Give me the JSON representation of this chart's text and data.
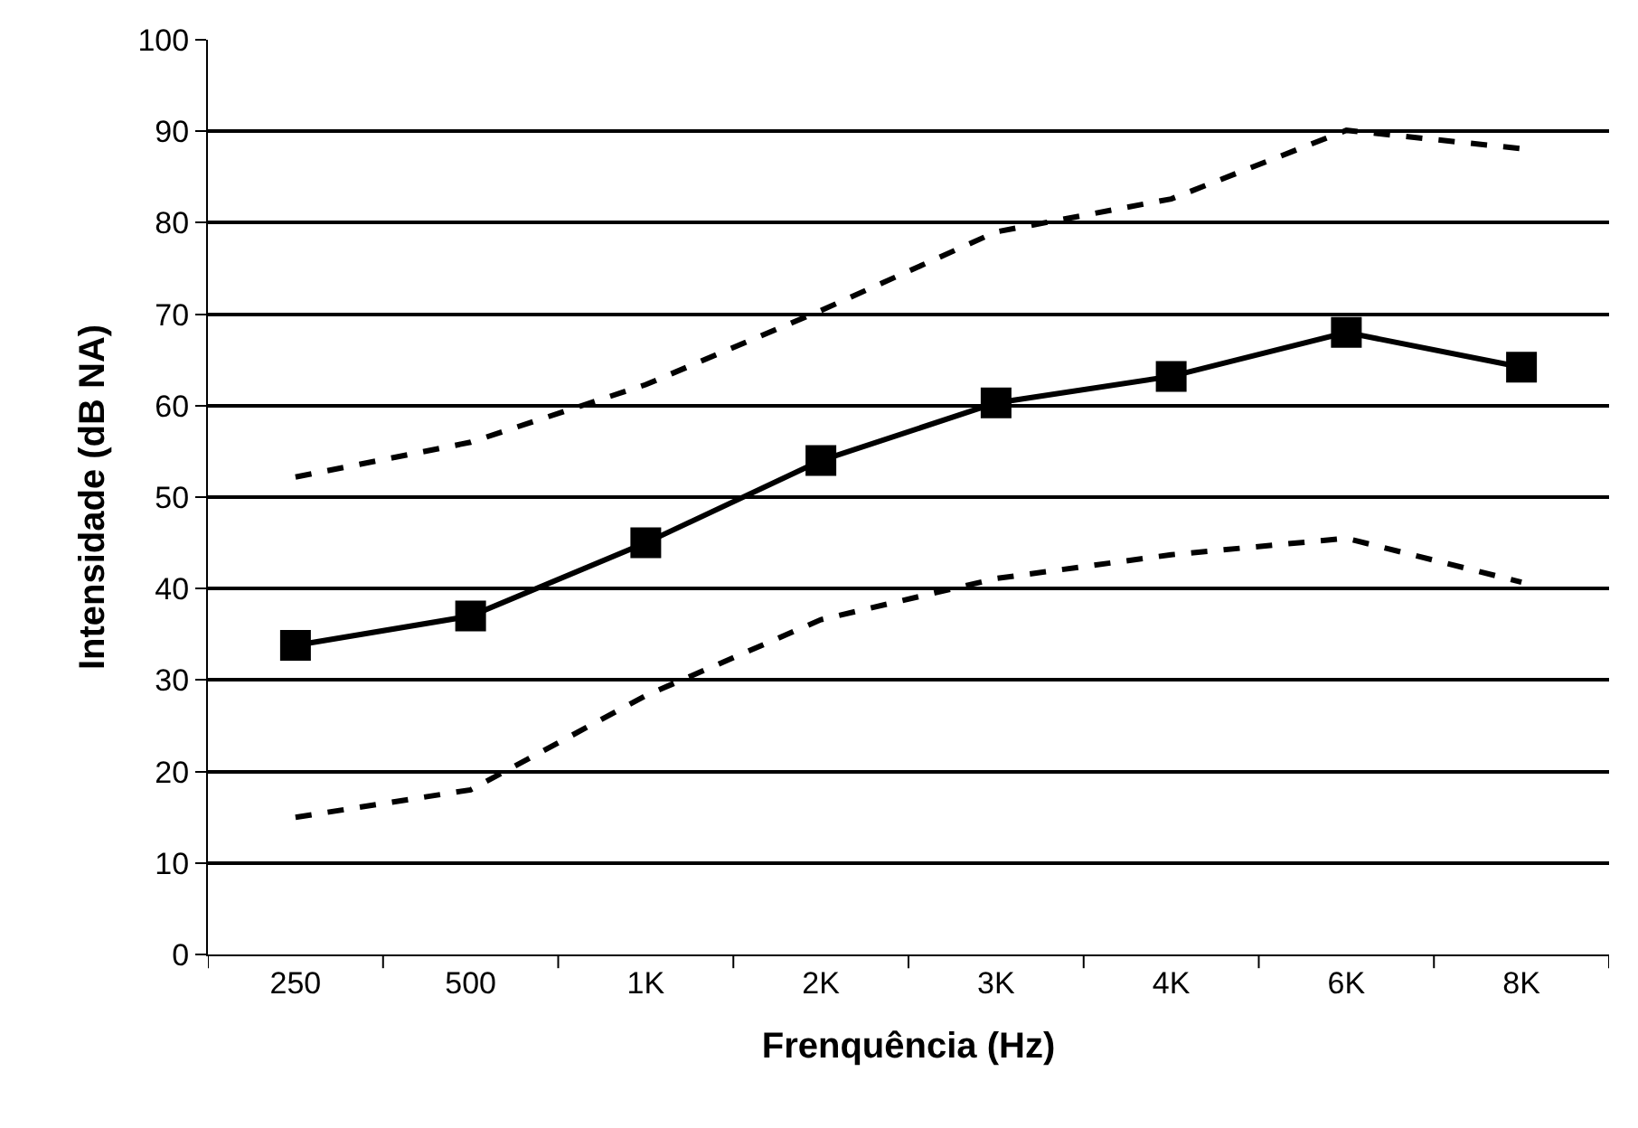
{
  "chart_data": {
    "type": "line",
    "xlabel": "Frenquência (Hz)",
    "ylabel": "Intensidade (dB NA)",
    "categories": [
      "250",
      "500",
      "1K",
      "2K",
      "3K",
      "4K",
      "6K",
      "8K"
    ],
    "series": [
      {
        "color": "#000000",
        "marker": "square",
        "line_style": "solid",
        "values": [
          33.8,
          37,
          45,
          54,
          60.3,
          63.2,
          68,
          64.2
        ]
      },
      {
        "color": "#000000",
        "marker": "none",
        "line_style": "dashed",
        "values": [
          52.2,
          56,
          62.3,
          70.4,
          79,
          82.6,
          90.1,
          88.1
        ]
      },
      {
        "color": "#000000",
        "marker": "none",
        "line_style": "dashed",
        "values": [
          15,
          18,
          28.3,
          36.6,
          41.1,
          43.7,
          45.5,
          40.7
        ]
      }
    ],
    "ylim": [
      0,
      100
    ],
    "yticks": [
      0,
      10,
      20,
      30,
      40,
      50,
      60,
      70,
      80,
      90,
      100
    ],
    "grid": "y"
  }
}
